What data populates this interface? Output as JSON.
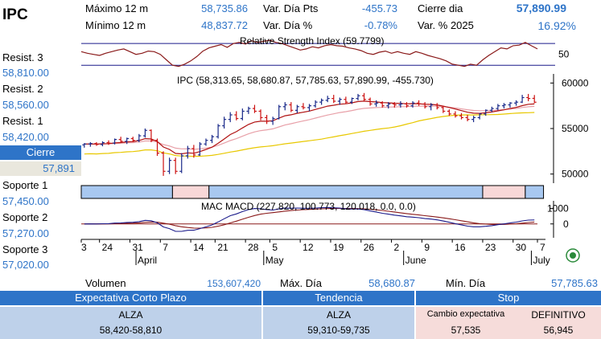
{
  "header": {
    "title": "IPC",
    "max_label": "Máximo 12 m",
    "max_value": "58,735.86",
    "min_label": "Mínimo 12 m",
    "min_value": "48,837.72",
    "var_pts_label": "Var. Día Pts",
    "var_pts_value": "-455.73",
    "var_pct_label": "Var. Día %",
    "var_pct_value": "-0.78%",
    "close_label": "Cierre dia",
    "close_value": "57,890.99",
    "ytd_label": "Var. % 2025",
    "ytd_value": "16.92%"
  },
  "levels": {
    "r3_label": "Resist. 3",
    "r3_value": "58,810.00",
    "r2_label": "Resist. 2",
    "r2_value": "58,560.00",
    "r1_label": "Resist. 1",
    "r1_value": "58,420.00",
    "close_label": "Cierre",
    "close_value": "57,891",
    "s1_label": "Soporte 1",
    "s1_value": "57,450.00",
    "s2_label": "Soporte 2",
    "s2_value": "57,270.00",
    "s3_label": "Soporte 3",
    "s3_value": "57,020.00"
  },
  "stats": {
    "volume_label": "Volumen",
    "volume_value": "153,607,420",
    "max_day_label": "Máx. Día",
    "max_day_value": "58,680.87",
    "min_day_label": "Mín. Día",
    "min_day_value": "57,785.63"
  },
  "table": {
    "col1_header": "Expectativa Corto Plazo",
    "col1_value": "ALZA",
    "col1_range": "58,420-58,810",
    "col2_header": "Tendencia",
    "col2_value": "ALZA",
    "col2_range": "59,310-59,735",
    "col3_header": "Stop",
    "col3_sub1": "Cambio expectativa",
    "col3_sub2": "DEFINITIVO",
    "col3_val1": "57,535",
    "col3_val2": "56,945"
  },
  "chart_data": {
    "type": "candlestick",
    "colors": {
      "up": "#1a2a8a",
      "down": "#cc1111",
      "ma_short": "#b01010",
      "ma_mid": "#e8a0a8",
      "ma_long": "#e8c800",
      "rsi": "#8a1a1a",
      "macd_line": "#1a1a8a",
      "macd_signal": "#8a1a1a",
      "trend_up": "#a8c8f0",
      "trend_down": "#f8d8d8"
    },
    "rsi": {
      "title": "Relative Strength Index (59.7799)",
      "tick_labels": [
        "50"
      ],
      "ylim": [
        20,
        85
      ],
      "upper_line": 70,
      "lower_line": 30,
      "values": [
        55,
        52,
        50,
        48,
        52,
        55,
        58,
        60,
        55,
        50,
        52,
        56,
        55,
        50,
        40,
        30,
        28,
        32,
        38,
        46,
        56,
        62,
        65,
        68,
        63,
        70,
        72,
        69,
        75,
        72,
        74,
        76,
        72,
        70,
        66,
        62,
        58,
        60,
        64,
        62,
        66,
        68,
        66,
        65,
        62,
        60,
        57,
        52,
        50,
        54,
        56,
        52,
        55,
        52,
        50,
        55,
        52,
        48,
        45,
        42,
        38,
        32,
        30,
        28,
        32,
        30,
        40,
        48,
        55,
        62,
        60,
        66,
        67,
        72,
        66,
        60
      ]
    },
    "price": {
      "title": "IPC (58,313.65, 58,680.87, 57,785.63, 57,890.99, -455.730)",
      "tick_labels": [
        "60000",
        "55000",
        "50000"
      ],
      "ylim": [
        49000,
        61000
      ],
      "ohlc": [
        [
          53200,
          53400,
          52900,
          53300
        ],
        [
          53300,
          53500,
          53000,
          53350
        ],
        [
          53350,
          53500,
          53100,
          53250
        ],
        [
          53250,
          53600,
          53050,
          53450
        ],
        [
          53450,
          53700,
          53200,
          53400
        ],
        [
          53400,
          53900,
          53250,
          53800
        ],
        [
          53800,
          54100,
          53500,
          53600
        ],
        [
          53600,
          54000,
          53300,
          53900
        ],
        [
          53900,
          54100,
          53500,
          53700
        ],
        [
          53700,
          54400,
          53500,
          54200
        ],
        [
          54200,
          55000,
          54000,
          54800
        ],
        [
          54800,
          54900,
          53500,
          53700
        ],
        [
          53700,
          53900,
          52000,
          52300
        ],
        [
          52300,
          52500,
          49800,
          50300
        ],
        [
          50300,
          51800,
          50000,
          51500
        ],
        [
          51500,
          51800,
          50000,
          50300
        ],
        [
          50300,
          52300,
          50100,
          52000
        ],
        [
          52000,
          53100,
          51700,
          52800
        ],
        [
          52800,
          53200,
          51800,
          52100
        ],
        [
          52100,
          53500,
          52000,
          53300
        ],
        [
          53300,
          53900,
          53100,
          53700
        ],
        [
          53700,
          54300,
          53400,
          54100
        ],
        [
          54100,
          55500,
          53900,
          55300
        ],
        [
          55300,
          56300,
          55000,
          56000
        ],
        [
          56000,
          56800,
          55700,
          56500
        ],
        [
          56500,
          56900,
          55900,
          56100
        ],
        [
          56100,
          57200,
          55900,
          56900
        ],
        [
          56900,
          57400,
          56600,
          57200
        ],
        [
          57200,
          57600,
          56700,
          56900
        ],
        [
          56900,
          57100,
          55900,
          56200
        ],
        [
          56200,
          56500,
          55500,
          55800
        ],
        [
          55800,
          56300,
          55400,
          56100
        ],
        [
          56100,
          57600,
          56000,
          57400
        ],
        [
          57400,
          57900,
          57000,
          57600
        ],
        [
          57600,
          57900,
          56800,
          57000
        ],
        [
          57000,
          57600,
          56700,
          57400
        ],
        [
          57400,
          57800,
          57100,
          57300
        ],
        [
          57300,
          57700,
          56900,
          57500
        ],
        [
          57500,
          58100,
          57300,
          57900
        ],
        [
          57900,
          58300,
          57600,
          58100
        ],
        [
          58100,
          58600,
          57900,
          58300
        ],
        [
          58300,
          58700,
          57800,
          58000
        ],
        [
          58000,
          58400,
          57600,
          58200
        ],
        [
          58200,
          58500,
          57700,
          57900
        ],
        [
          57900,
          58400,
          57700,
          58300
        ],
        [
          58300,
          58800,
          58100,
          58600
        ],
        [
          58600,
          58900,
          58000,
          58200
        ],
        [
          58200,
          58400,
          57500,
          57700
        ],
        [
          57700,
          58100,
          57400,
          57800
        ],
        [
          57800,
          58000,
          57300,
          57500
        ],
        [
          57500,
          57900,
          57200,
          57700
        ],
        [
          57700,
          57900,
          57300,
          57600
        ],
        [
          57600,
          58000,
          57300,
          57700
        ],
        [
          57700,
          57900,
          57300,
          57500
        ],
        [
          57500,
          58000,
          57300,
          57800
        ],
        [
          57800,
          58100,
          57500,
          57700
        ],
        [
          57700,
          57900,
          57200,
          57400
        ],
        [
          57400,
          57800,
          57000,
          57600
        ],
        [
          57600,
          57800,
          57100,
          57300
        ],
        [
          57300,
          57500,
          56700,
          56900
        ],
        [
          56900,
          57100,
          56400,
          56600
        ],
        [
          56600,
          56900,
          56200,
          56400
        ],
        [
          56400,
          56700,
          56000,
          56200
        ],
        [
          56200,
          56500,
          55800,
          56000
        ],
        [
          56000,
          56400,
          55700,
          56200
        ],
        [
          56200,
          56700,
          56000,
          56600
        ],
        [
          56600,
          57100,
          56400,
          57000
        ],
        [
          57000,
          57400,
          56800,
          57200
        ],
        [
          57200,
          57700,
          57000,
          57500
        ],
        [
          57500,
          57800,
          57200,
          57600
        ],
        [
          57600,
          57900,
          57300,
          57800
        ],
        [
          57800,
          58100,
          57500,
          57900
        ],
        [
          57900,
          58700,
          57800,
          58400
        ],
        [
          58400,
          58800,
          58000,
          58300
        ],
        [
          58313.65,
          58680.87,
          57785.63,
          57890.99
        ]
      ]
    },
    "trend_bar": [
      {
        "state": "up",
        "from": 0,
        "to": 14
      },
      {
        "state": "down",
        "from": 15,
        "to": 20
      },
      {
        "state": "up",
        "from": 21,
        "to": 65
      },
      {
        "state": "down",
        "from": 66,
        "to": 72
      },
      {
        "state": "up",
        "from": 73,
        "to": 75
      }
    ],
    "macd": {
      "title": "MAC MACD (227.820, 100.773, 120.018, 0.0, 0.0)",
      "tick_labels": [
        "1000",
        "0"
      ],
      "ylim": [
        -900,
        1500
      ]
    },
    "x_ticks": [
      {
        "label": "3",
        "i": 0
      },
      {
        "label": "24",
        "i": 3
      },
      {
        "label": "31",
        "i": 8
      },
      {
        "label": "7",
        "i": 13
      },
      {
        "label": "14",
        "i": 18
      },
      {
        "label": "21",
        "i": 22
      },
      {
        "label": "28",
        "i": 27
      },
      {
        "label": "5",
        "i": 31
      },
      {
        "label": "12",
        "i": 36
      },
      {
        "label": "19",
        "i": 41
      },
      {
        "label": "26",
        "i": 46
      },
      {
        "label": "2",
        "i": 51
      },
      {
        "label": "9",
        "i": 56
      },
      {
        "label": "16",
        "i": 61
      },
      {
        "label": "23",
        "i": 66
      },
      {
        "label": "30",
        "i": 71
      },
      {
        "label": "7",
        "i": 75
      }
    ],
    "x_months": [
      {
        "label": "April",
        "i": 9
      },
      {
        "label": "May",
        "i": 30
      },
      {
        "label": "June",
        "i": 53
      },
      {
        "label": "July",
        "i": 74
      }
    ]
  }
}
